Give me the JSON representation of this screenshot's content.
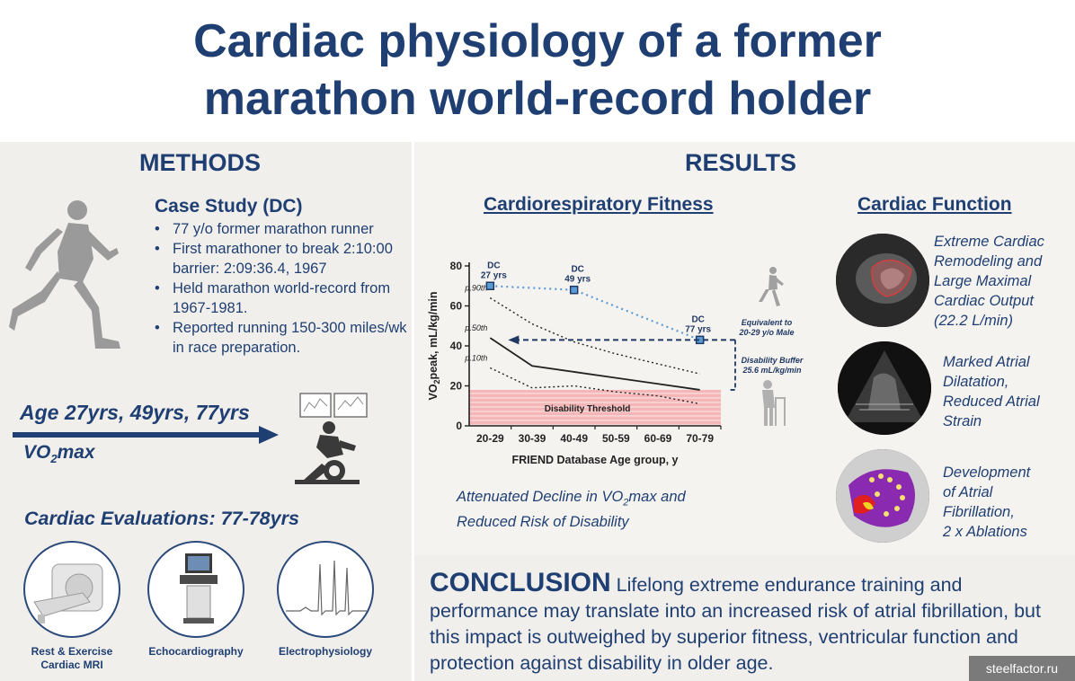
{
  "title": {
    "line1": "Cardiac physiology of a former",
    "line2": "marathon world-record holder"
  },
  "methods": {
    "heading": "METHODS",
    "case_title": "Case Study (DC)",
    "bullets": [
      "77 y/o former marathon runner",
      "First marathoner to break 2:10:00 barrier: 2:09:36.4, 1967",
      "Held marathon world-record from 1967-1981.",
      "Reported running 150-300 miles/wk in race preparation."
    ],
    "age_label": "Age 27yrs, 49yrs, 77yrs",
    "vo2_prefix": "VO",
    "vo2_sub": "2",
    "vo2_suffix": "max",
    "evaluations_heading": "Cardiac Evaluations: 77-78yrs",
    "evaluations": [
      {
        "line1": "Rest & Exercise",
        "line2": "Cardiac MRI"
      },
      {
        "line1": "Echocardiography",
        "line2": ""
      },
      {
        "line1": "Electrophysiology",
        "line2": ""
      }
    ]
  },
  "results": {
    "heading": "RESULTS",
    "fitness_heading": "Cardiorespiratory Fitness",
    "fitness_caption_pre": "Attenuated Decline in VO",
    "fitness_caption_sub": "2",
    "fitness_caption_post": "max and",
    "fitness_caption_line2": "Reduced Risk of Disability",
    "cardiac_heading": "Cardiac Function",
    "cardiac_items": [
      {
        "lines": [
          "Extreme Cardiac",
          "Remodeling and",
          "Large Maximal",
          "Cardiac Output",
          "(22.2 L/min)"
        ]
      },
      {
        "lines": [
          "Marked Atrial",
          "Dilatation,",
          "Reduced Atrial",
          "Strain"
        ]
      },
      {
        "lines": [
          "Development",
          "of Atrial",
          "Fibrillation,",
          "2 x Ablations"
        ]
      }
    ]
  },
  "chart_data": {
    "type": "line",
    "categories": [
      "20-29",
      "30-39",
      "40-49",
      "50-59",
      "60-69",
      "70-79"
    ],
    "xlabel": "FRIEND Database Age group, y",
    "ylabel": "VO2peak, mL/kg/min",
    "ylabel_main": "VO",
    "ylabel_sub": "2",
    "ylabel_rest": "peak, mL/kg/min",
    "ylim": [
      0,
      80
    ],
    "yticks": [
      0,
      20,
      40,
      60,
      80
    ],
    "series": [
      {
        "name": "p.90th",
        "style": "dotted",
        "values": [
          64,
          51,
          42,
          36,
          31,
          26
        ]
      },
      {
        "name": "p.50th",
        "style": "solid",
        "values": [
          44,
          30,
          27,
          24,
          21,
          18
        ]
      },
      {
        "name": "p.10th",
        "style": "dotted",
        "values": [
          29,
          19,
          20,
          17,
          15,
          11
        ]
      }
    ],
    "dc_points": [
      {
        "label_line1": "DC",
        "label_line2": "27 yrs",
        "category": "20-29",
        "value": 70
      },
      {
        "label_line1": "DC",
        "label_line2": "49 yrs",
        "category": "40-49",
        "value": 68
      },
      {
        "label_line1": "DC",
        "label_line2": "77 yrs",
        "category": "70-79",
        "value": 43
      }
    ],
    "disability_threshold": {
      "label": "Disability Threshold",
      "value": 18
    },
    "annotations": {
      "equivalent_line1": "Equivalent to",
      "equivalent_line2": "20-29 y/o Male",
      "buffer_line1": "Disability Buffer",
      "buffer_line2": "25.6 mL/kg/min"
    },
    "colors": {
      "dc": "#5b9bd5",
      "arrow": "#1f3864",
      "threshold": "#f4b6b6"
    }
  },
  "conclusion": {
    "keyword": "CONCLUSION",
    "text": " Lifelong extreme endurance training and performance may translate into an increased risk of atrial fibrillation, but this impact is outweighed by superior fitness, ventricular function and protection against disability in older age."
  },
  "watermark": "steelfactor.ru"
}
